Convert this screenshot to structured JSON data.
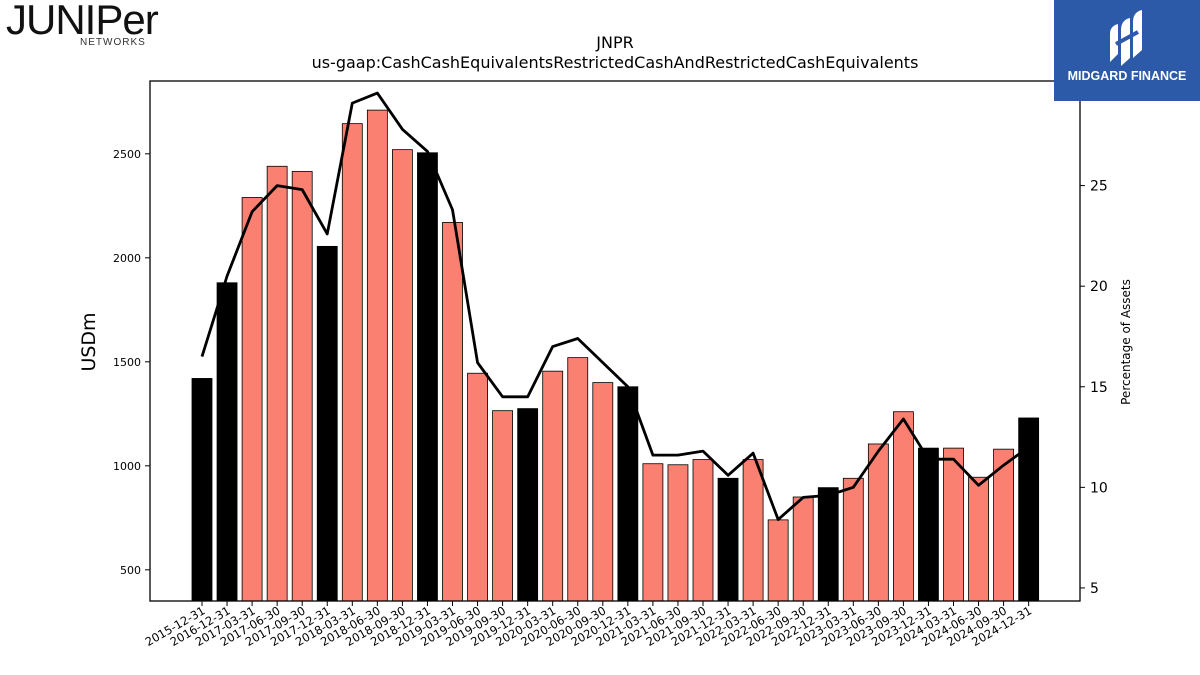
{
  "branding": {
    "company_logo_word": "JUNIPer",
    "company_logo_sub": "NETWORKS",
    "badge_text": "MIDGARD FINANCE",
    "badge_color": "#2c5aa8"
  },
  "chart_data": {
    "type": "bar",
    "title": "JNPR",
    "subtitle": "us-gaap:CashCashEquivalentsRestrictedCashAndRestrictedCashEquivalents",
    "ylabel": "USDm",
    "y2label": "Percentage of Assets",
    "categories": [
      "2015-12-31",
      "2016-12-31",
      "2017-03-31",
      "2017-06-30",
      "2017-09-30",
      "2017-12-31",
      "2018-03-31",
      "2018-06-30",
      "2018-09-30",
      "2018-12-31",
      "2019-03-31",
      "2019-06-30",
      "2019-09-30",
      "2019-12-31",
      "2020-03-31",
      "2020-06-30",
      "2020-09-30",
      "2020-12-31",
      "2021-03-31",
      "2021-06-30",
      "2021-09-30",
      "2021-12-31",
      "2022-03-31",
      "2022-06-30",
      "2022-09-30",
      "2022-12-31",
      "2023-03-31",
      "2023-06-30",
      "2023-09-30",
      "2023-12-31",
      "2024-03-31",
      "2024-06-30",
      "2024-09-30",
      "2024-12-31"
    ],
    "series": [
      {
        "type": "bar",
        "axis": "left",
        "values": [
          1420,
          1880,
          2290,
          2440,
          2415,
          2055,
          2645,
          2710,
          2520,
          2505,
          2170,
          1445,
          1265,
          1275,
          1455,
          1520,
          1400,
          1380,
          1010,
          1005,
          1030,
          940,
          1030,
          740,
          850,
          895,
          940,
          1105,
          1260,
          1085,
          1085,
          945,
          1080,
          1230
        ],
        "highlight": [
          true,
          true,
          false,
          false,
          false,
          true,
          false,
          false,
          false,
          true,
          false,
          false,
          false,
          true,
          false,
          false,
          false,
          true,
          false,
          false,
          false,
          true,
          false,
          false,
          false,
          true,
          false,
          false,
          false,
          true,
          false,
          false,
          false,
          true
        ]
      },
      {
        "type": "line",
        "axis": "right",
        "values": [
          16.5,
          20.5,
          23.7,
          25.0,
          24.8,
          22.6,
          29.1,
          29.6,
          27.8,
          26.7,
          23.8,
          16.2,
          14.5,
          14.5,
          17.0,
          17.4,
          16.2,
          15.0,
          11.6,
          11.6,
          11.8,
          10.6,
          11.7,
          8.4,
          9.5,
          9.6,
          10.0,
          11.8,
          13.4,
          11.4,
          11.4,
          10.1,
          11.1,
          12.0
        ]
      }
    ],
    "ylim": [
      350,
      2850
    ],
    "yticks": [
      500,
      1000,
      1500,
      2000,
      2500
    ],
    "y2lim": [
      4.35,
      30.2
    ],
    "y2ticks": [
      5,
      10,
      15,
      20,
      25,
      30
    ],
    "colors": {
      "bar": "#fa8072",
      "bar_highlight": "#000000",
      "line": "#000000"
    },
    "grid": false
  }
}
